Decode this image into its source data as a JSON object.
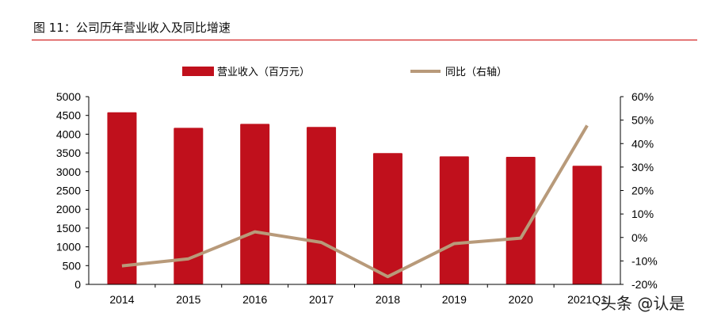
{
  "title": "图 11：公司历年营业收入及同比增速",
  "watermark": "头条 @认是",
  "chart_data": {
    "type": "bar+line",
    "categories": [
      "2014",
      "2015",
      "2016",
      "2017",
      "2018",
      "2019",
      "2020",
      "2021Q1"
    ],
    "series": [
      {
        "name": "营业收入（百万元）",
        "type": "bar",
        "axis": "left",
        "color": "#c0101c",
        "values": [
          4584,
          4170,
          4276,
          4192,
          3496,
          3411,
          3397,
          3158
        ]
      },
      {
        "name": "同比（右轴）",
        "type": "line",
        "axis": "right",
        "color": "#b89a7a",
        "values": [
          -12.1,
          -9.1,
          2.4,
          -2.1,
          -16.7,
          -2.6,
          -0.3,
          47.7
        ]
      }
    ],
    "yleft": {
      "range": [
        0,
        5000
      ],
      "ticks": [
        "0",
        "500",
        "1000",
        "1500",
        "2000",
        "2500",
        "3000",
        "3500",
        "4000",
        "4500",
        "5000"
      ]
    },
    "yright": {
      "range": [
        -20,
        60
      ],
      "ticks": [
        "-20%",
        "-10%",
        "0%",
        "10%",
        "20%",
        "30%",
        "40%",
        "50%",
        "60%"
      ]
    },
    "legend": "top",
    "grid": false
  }
}
